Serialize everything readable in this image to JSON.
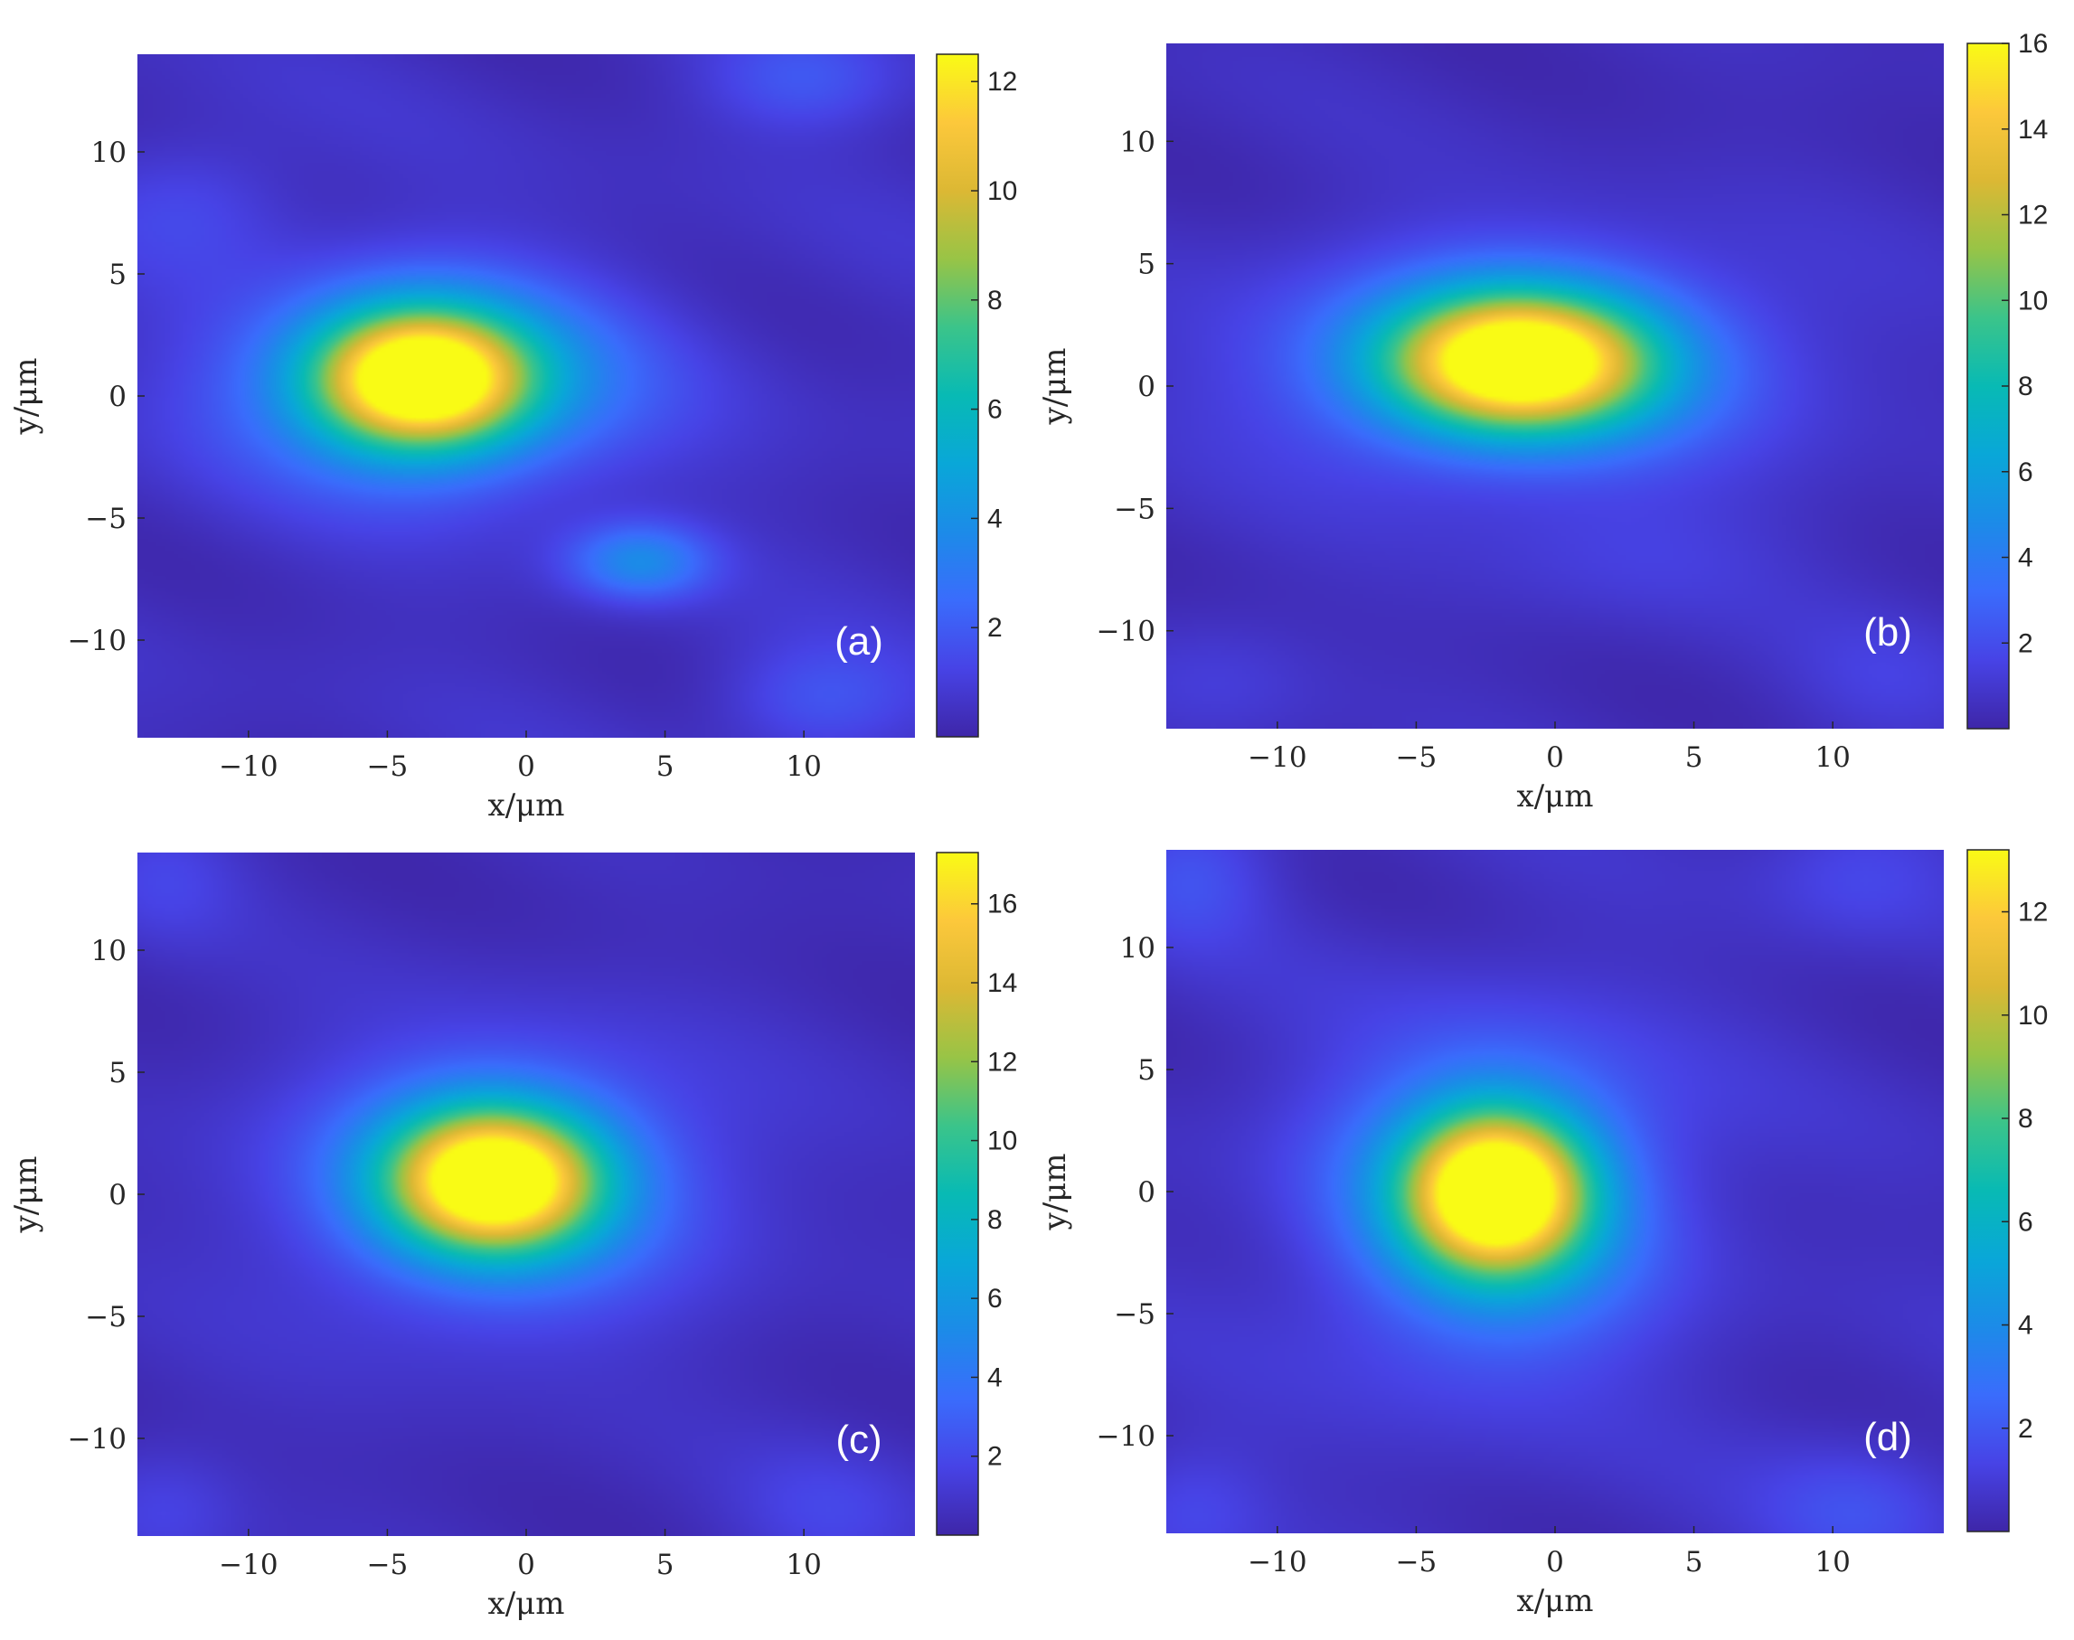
{
  "chart_data": [
    {
      "type": "heatmap",
      "panel_label": "(a)",
      "xlabel": "x/μm",
      "ylabel": "y/μm",
      "xlim": [
        -14,
        14
      ],
      "ylim": [
        -14,
        14
      ],
      "xticks": [
        -10,
        -5,
        0,
        5,
        10
      ],
      "yticks": [
        10,
        5,
        0,
        -5,
        -10
      ],
      "colorbar": {
        "range": [
          0,
          12.5
        ],
        "ticks": [
          2,
          4,
          6,
          8,
          10,
          12
        ]
      },
      "features": [
        {
          "x": -3.8,
          "y": 0.7,
          "sx": 2.6,
          "sy": 1.9,
          "peak": 12.3
        },
        {
          "x": -3.3,
          "y": 0.6,
          "sx": 5.0,
          "sy": 3.0,
          "peak": 4.2
        },
        {
          "x": 4.1,
          "y": -6.8,
          "sx": 1.8,
          "sy": 1.1,
          "peak": 3.2
        },
        {
          "x": 10,
          "y": 13,
          "sx": 2.5,
          "sy": 1.5,
          "peak": 1.4
        },
        {
          "x": -12,
          "y": 8,
          "sx": 2.5,
          "sy": 2.0,
          "peak": 1.0
        },
        {
          "x": 10.5,
          "y": -12.5,
          "sx": 2.5,
          "sy": 1.6,
          "peak": 1.4
        }
      ]
    },
    {
      "type": "heatmap",
      "panel_label": "(b)",
      "xlabel": "x/μm",
      "ylabel": "y/μm",
      "xlim": [
        -14,
        14
      ],
      "ylim": [
        -14,
        14
      ],
      "xticks": [
        -10,
        -5,
        0,
        5,
        10
      ],
      "yticks": [
        10,
        5,
        0,
        -5,
        -10
      ],
      "colorbar": {
        "range": [
          0,
          16
        ],
        "ticks": [
          2,
          4,
          6,
          8,
          10,
          12,
          14,
          16
        ]
      },
      "features": [
        {
          "x": -1.3,
          "y": 1.0,
          "sx": 3.2,
          "sy": 1.9,
          "peak": 15.8
        },
        {
          "x": -1.3,
          "y": 0.9,
          "sx": 6.2,
          "sy": 3.2,
          "peak": 4.5
        },
        {
          "x": 3,
          "y": -7,
          "sx": 4,
          "sy": 2,
          "peak": 0.8
        },
        {
          "x": -12,
          "y": -12,
          "sx": 2.5,
          "sy": 2,
          "peak": 0.8
        },
        {
          "x": 12,
          "y": -12,
          "sx": 2.5,
          "sy": 2,
          "peak": 0.8
        }
      ]
    },
    {
      "type": "heatmap",
      "panel_label": "(c)",
      "xlabel": "x/μm",
      "ylabel": "y/μm",
      "xlim": [
        -14,
        14
      ],
      "ylim": [
        -14,
        14
      ],
      "xticks": [
        -10,
        -5,
        0,
        5,
        10
      ],
      "yticks": [
        10,
        5,
        0,
        -5,
        -10
      ],
      "colorbar": {
        "range": [
          0,
          17.3
        ],
        "ticks": [
          2,
          4,
          6,
          8,
          10,
          12,
          14,
          16
        ]
      },
      "features": [
        {
          "x": -1.2,
          "y": 0.6,
          "sx": 2.6,
          "sy": 2.0,
          "peak": 17.1
        },
        {
          "x": -1.0,
          "y": 0.4,
          "sx": 5.2,
          "sy": 3.8,
          "peak": 4.8
        },
        {
          "x": -13,
          "y": 13,
          "sx": 2,
          "sy": 2,
          "peak": 1.2
        },
        {
          "x": -13,
          "y": -13,
          "sx": 2,
          "sy": 2,
          "peak": 1.2
        },
        {
          "x": 11,
          "y": -13,
          "sx": 2.5,
          "sy": 2,
          "peak": 1.2
        }
      ]
    },
    {
      "type": "heatmap",
      "panel_label": "(d)",
      "xlabel": "x/μm",
      "ylabel": "y/μm",
      "xlim": [
        -14,
        14
      ],
      "ylim": [
        -14,
        14
      ],
      "xticks": [
        -10,
        -5,
        0,
        5,
        10
      ],
      "yticks": [
        10,
        5,
        0,
        -5,
        -10
      ],
      "colorbar": {
        "range": [
          0,
          13.2
        ],
        "ticks": [
          2,
          4,
          6,
          8,
          10,
          12
        ]
      },
      "features": [
        {
          "x": -2.1,
          "y": 0.0,
          "sx": 2.2,
          "sy": 2.2,
          "peak": 13.0
        },
        {
          "x": -2.2,
          "y": -0.4,
          "sx": 4.2,
          "sy": 4.5,
          "peak": 4.5
        },
        {
          "x": -13,
          "y": 13,
          "sx": 2,
          "sy": 2,
          "peak": 1.3
        },
        {
          "x": 11,
          "y": 13,
          "sx": 2.5,
          "sy": 2,
          "peak": 1.0
        },
        {
          "x": 11,
          "y": -13,
          "sx": 2.5,
          "sy": 2,
          "peak": 1.2
        },
        {
          "x": -13,
          "y": -13,
          "sx": 2,
          "sy": 2,
          "peak": 1.0
        }
      ]
    }
  ]
}
